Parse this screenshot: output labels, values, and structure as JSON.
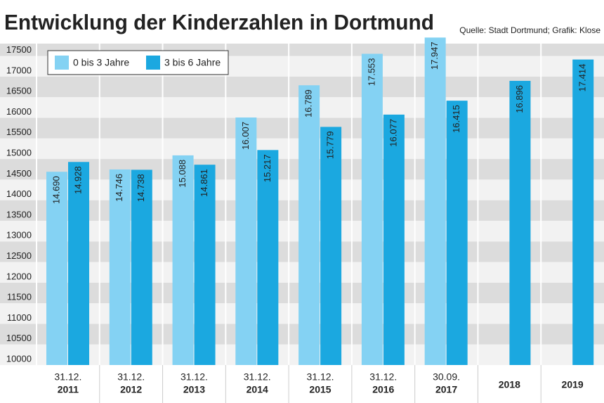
{
  "chart_data": {
    "type": "bar",
    "title": "Entwicklung der Kinderzahlen in Dortmund",
    "subtitle": "Quelle: Stadt Dortmund; Grafik: Klose",
    "categories": [
      [
        "31.12.",
        "2011"
      ],
      [
        "31.12.",
        "2012"
      ],
      [
        "31.12.",
        "2013"
      ],
      [
        "31.12.",
        "2014"
      ],
      [
        "31.12.",
        "2015"
      ],
      [
        "31.12.",
        "2016"
      ],
      [
        "30.09.",
        "2017"
      ],
      [
        "2018"
      ],
      [
        "2019"
      ]
    ],
    "series": [
      {
        "name": "0 bis 3 Jahre",
        "color": "#84d2f3",
        "values": [
          14690,
          14746,
          15088,
          16007,
          16789,
          17553,
          17947,
          null,
          null
        ],
        "value_labels": [
          "14.690",
          "14.746",
          "15.088",
          "16.007",
          "16.789",
          "17.553",
          "17.947",
          null,
          null
        ]
      },
      {
        "name": "3 bis 6 Jahre",
        "color": "#1ba8e0",
        "values": [
          14928,
          14738,
          14861,
          15217,
          15779,
          16077,
          16415,
          16896,
          17414
        ],
        "value_labels": [
          "14.928",
          "14.738",
          "14.861",
          "15.217",
          "15.779",
          "16.077",
          "16.415",
          "16.896",
          "17.414"
        ]
      }
    ],
    "ylim": [
      10000,
      17800
    ],
    "yticks": [
      10000,
      10500,
      11000,
      11500,
      12000,
      12500,
      13000,
      13500,
      14000,
      14500,
      15000,
      15500,
      16000,
      16500,
      17000,
      17500
    ],
    "grid": true,
    "legend": "top-left"
  }
}
